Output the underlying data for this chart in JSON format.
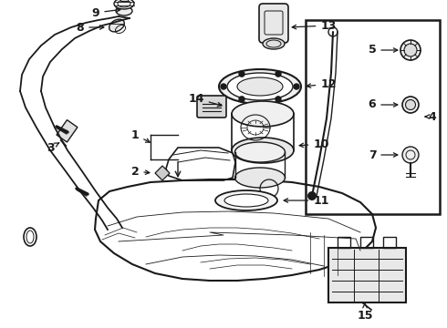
{
  "bg_color": "#ffffff",
  "lc": "#1a1a1a",
  "figsize": [
    4.9,
    3.6
  ],
  "dpi": 100,
  "xlim": [
    0,
    490
  ],
  "ylim": [
    0,
    360
  ]
}
